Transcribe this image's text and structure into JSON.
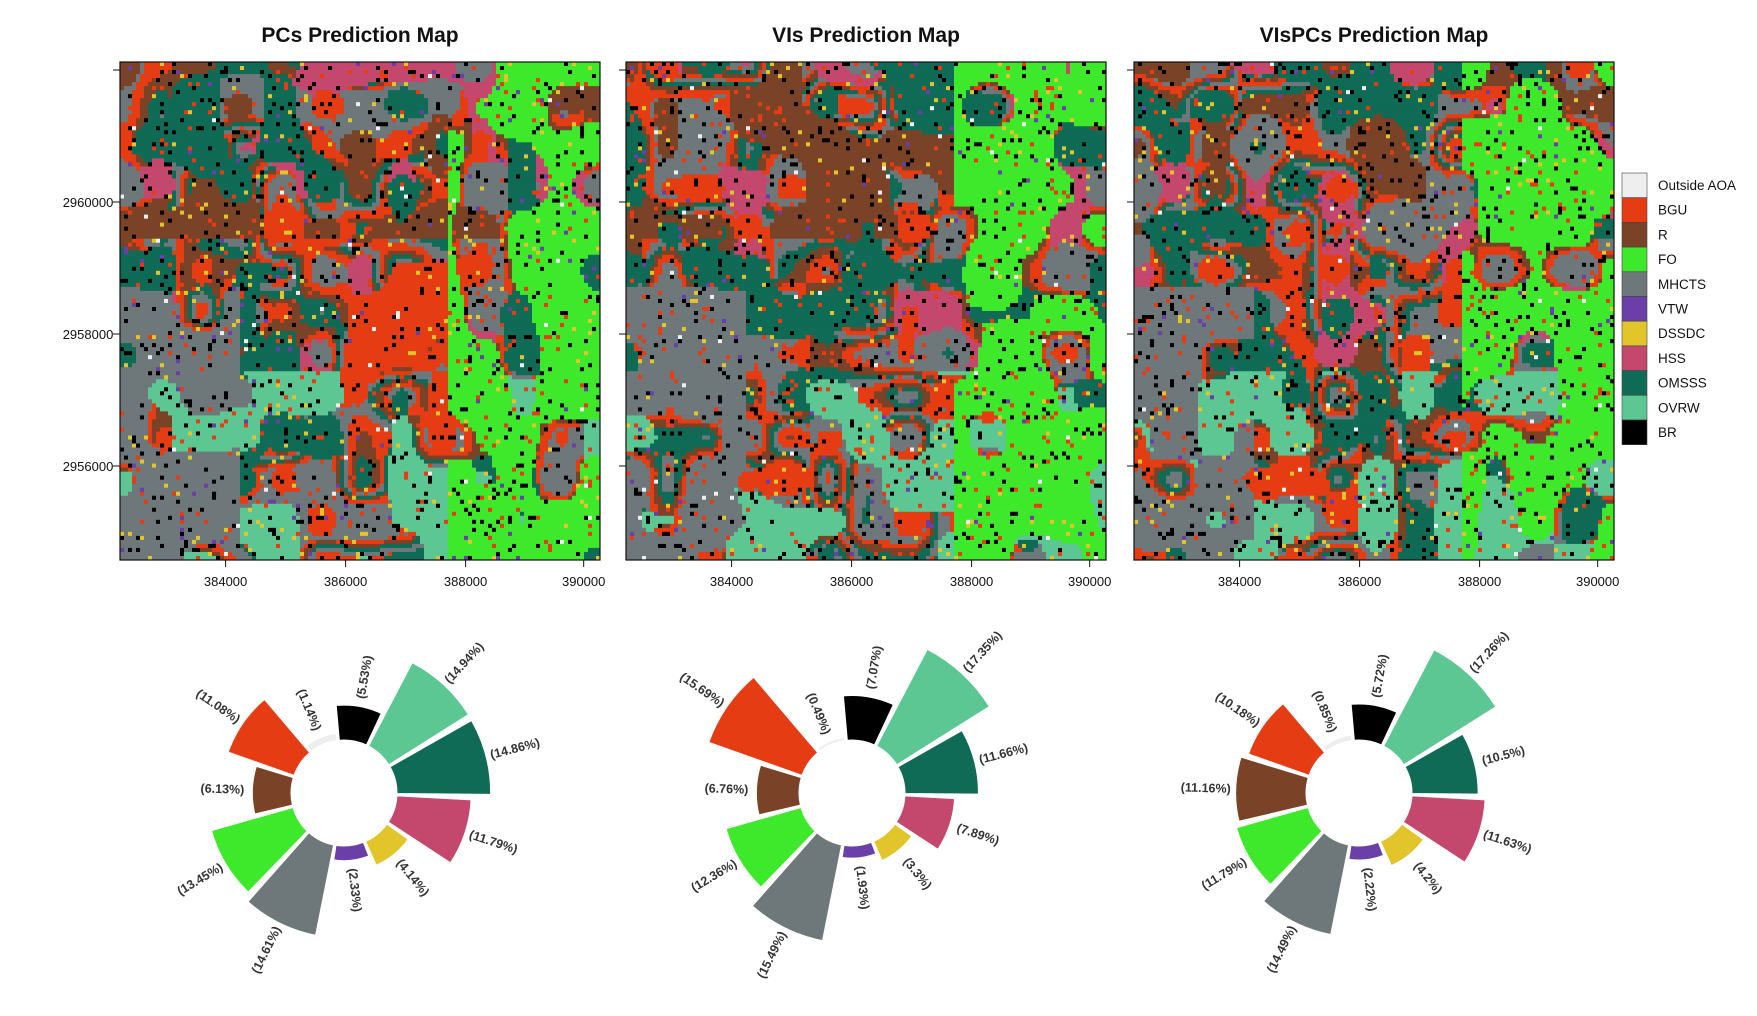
{
  "maps": [
    {
      "id": "pcs",
      "title": "PCs Prediction Map",
      "seed": 11
    },
    {
      "id": "vis",
      "title": "VIs Prediction Map",
      "seed": 23
    },
    {
      "id": "vispcs",
      "title": "VIsPCs Prediction Map",
      "seed": 37
    }
  ],
  "axes": {
    "x_ticks": [
      "384000",
      "386000",
      "388000",
      "390000"
    ],
    "y_ticks": [
      "2960000",
      "2958000",
      "2956000"
    ]
  },
  "legend": [
    {
      "label": "Outside AOA",
      "color": "#eeeeee"
    },
    {
      "label": "BGU",
      "color": "#e63c14"
    },
    {
      "label": "R",
      "color": "#7a4226"
    },
    {
      "label": "FO",
      "color": "#3ee82a"
    },
    {
      "label": "MHCTS",
      "color": "#6e777a"
    },
    {
      "label": "VTW",
      "color": "#6a3fa8"
    },
    {
      "label": "DSSDC",
      "color": "#e2c52a"
    },
    {
      "label": "HSS",
      "color": "#c4476e"
    },
    {
      "label": "OMSSS",
      "color": "#0f6b55"
    },
    {
      "label": "OVRW",
      "color": "#5dc794"
    },
    {
      "label": "BR",
      "color": "#000000"
    }
  ],
  "chart_data": [
    {
      "type": "polar-bar",
      "map": "PCs Prediction Map",
      "categories": [
        "BR",
        "OVRW",
        "OMSSS",
        "HSS",
        "DSSDC",
        "VTW",
        "MHCTS",
        "FO",
        "R",
        "BGU",
        "Outside AOA"
      ],
      "values": [
        5.53,
        14.94,
        14.86,
        11.79,
        4.14,
        2.33,
        14.61,
        13.45,
        6.13,
        11.08,
        1.14
      ],
      "labels": [
        "(5.53%)",
        "(14.94%)",
        "(14.86%)",
        "(11.79%)",
        "(4.14%)",
        "(2.33%)",
        "(14.61%)",
        "(13.45%)",
        "(6.13%)",
        "(11.08%)",
        "(1.14%)"
      ]
    },
    {
      "type": "polar-bar",
      "map": "VIs Prediction Map",
      "categories": [
        "BR",
        "OVRW",
        "OMSSS",
        "HSS",
        "DSSDC",
        "VTW",
        "MHCTS",
        "FO",
        "R",
        "BGU",
        "Outside AOA"
      ],
      "values": [
        7.07,
        17.35,
        11.66,
        7.89,
        3.3,
        1.93,
        15.49,
        12.36,
        6.76,
        15.69,
        0.49
      ],
      "labels": [
        "(7.07%)",
        "(17.35%)",
        "(11.66%)",
        "(7.89%)",
        "(3.3%)",
        "(1.93%)",
        "(15.49%)",
        "(12.36%)",
        "(6.76%)",
        "(15.69%)",
        "(0.49%)"
      ]
    },
    {
      "type": "polar-bar",
      "map": "VIsPCs Prediction Map",
      "categories": [
        "BR",
        "OVRW",
        "OMSSS",
        "HSS",
        "DSSDC",
        "VTW",
        "MHCTS",
        "FO",
        "R",
        "BGU",
        "Outside AOA"
      ],
      "values": [
        5.72,
        17.26,
        10.5,
        11.63,
        4.2,
        2.22,
        14.49,
        11.79,
        11.16,
        10.18,
        0.85
      ],
      "labels": [
        "(5.72%)",
        "(17.26%)",
        "(10.5%)",
        "(11.63%)",
        "(4.2%)",
        "(2.22%)",
        "(14.49%)",
        "(11.79%)",
        "(11.16%)",
        "(10.18%)",
        "(0.85%)"
      ]
    }
  ]
}
